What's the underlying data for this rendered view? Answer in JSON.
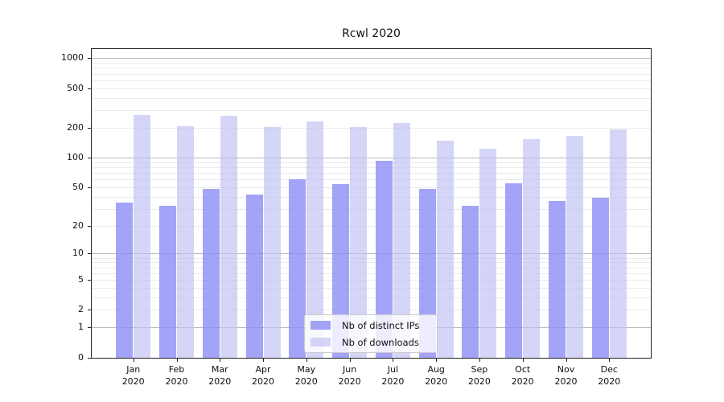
{
  "figure": {
    "title": "Rcwl 2020",
    "background_color": "#ffffff",
    "axis_color": "#222222",
    "major_grid_color": "#b9b9b9",
    "minor_grid_color": "#ebebeb"
  },
  "chart_data": {
    "type": "bar",
    "title": "Rcwl 2020",
    "categories": [
      "Jan",
      "Feb",
      "Mar",
      "Apr",
      "May",
      "Jun",
      "Jul",
      "Aug",
      "Sep",
      "Oct",
      "Nov",
      "Dec"
    ],
    "year_label": "2020",
    "series": [
      {
        "name": "Nb of distinct IPs",
        "color": "rgba(140,140,245,0.8)",
        "values": [
          35,
          32,
          48,
          42,
          60,
          54,
          93,
          48,
          32,
          55,
          36,
          39
        ]
      },
      {
        "name": "Nb of downloads",
        "color": "rgba(190,190,242,0.65)",
        "values": [
          267,
          207,
          262,
          204,
          230,
          202,
          222,
          148,
          124,
          155,
          167,
          192
        ]
      }
    ],
    "yscale": "log1p",
    "yticks": [
      0,
      1,
      2,
      5,
      10,
      20,
      50,
      100,
      200,
      500,
      1000
    ],
    "ylim": [
      0,
      1200
    ],
    "grid": "horizontal, major at powers of 10, faint minors",
    "legend_position": "inside lower center"
  }
}
